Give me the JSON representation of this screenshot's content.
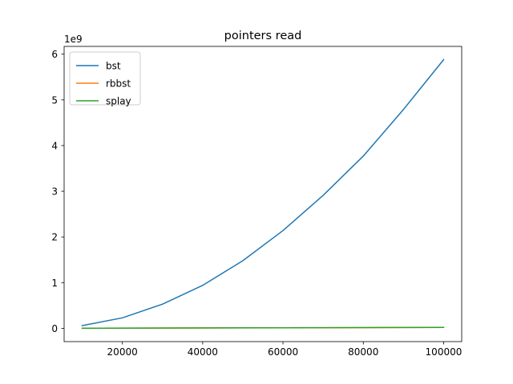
{
  "chart_data": {
    "type": "line",
    "title": "pointers read",
    "xlabel": "",
    "ylabel": "",
    "y_offset_label": "1e9",
    "x": [
      10000,
      20000,
      30000,
      40000,
      50000,
      60000,
      70000,
      80000,
      90000,
      100000
    ],
    "xlim": [
      5500,
      104500
    ],
    "ylim": [
      -0.29,
      6.17
    ],
    "x_ticks": [
      20000,
      40000,
      60000,
      80000,
      100000
    ],
    "y_ticks": [
      0,
      1,
      2,
      3,
      4,
      5,
      6
    ],
    "x_tick_labels": [
      "20000",
      "40000",
      "60000",
      "80000",
      "100000"
    ],
    "y_tick_labels": [
      "0",
      "1",
      "2",
      "3",
      "4",
      "5",
      "6"
    ],
    "grid": false,
    "legend_position": "top-left",
    "series": [
      {
        "name": "bst",
        "color": "#1f77b4",
        "values": [
          0.06,
          0.23,
          0.53,
          0.94,
          1.48,
          2.14,
          2.91,
          3.77,
          4.79,
          5.88
        ]
      },
      {
        "name": "rbbst",
        "color": "#ff7f0e",
        "values": [
          0.002,
          0.004,
          0.006,
          0.008,
          0.01,
          0.012,
          0.014,
          0.016,
          0.018,
          0.02
        ]
      },
      {
        "name": "splay",
        "color": "#2ca02c",
        "values": [
          0.003,
          0.005,
          0.007,
          0.009,
          0.011,
          0.013,
          0.015,
          0.017,
          0.019,
          0.021
        ]
      }
    ]
  }
}
